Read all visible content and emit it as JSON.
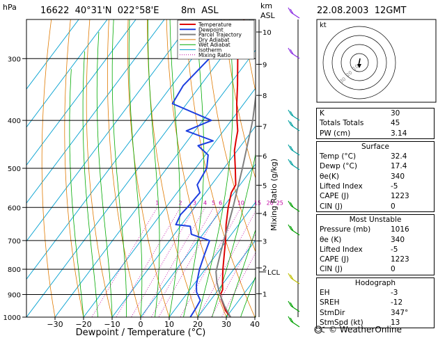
{
  "header": {
    "hpa_label": "hPa",
    "station": "16622  40°31'N  022°58'E",
    "elevation": "8m  ASL",
    "km_label": "km",
    "asl_label": "ASL",
    "datetime": "22.08.2003  12GMT"
  },
  "chart_data": {
    "type": "skewt",
    "xlabel": "Dewpoint / Temperature (°C)",
    "ylabel_right": "Mixing Ratio (g/kg)",
    "x_ticks": [
      -30,
      -20,
      -10,
      0,
      10,
      20,
      30,
      40
    ],
    "x_tick_labels": [
      "−30",
      "−20",
      "−10",
      "0",
      "10",
      "20",
      "30",
      "40"
    ],
    "pressure_ticks": [
      300,
      400,
      500,
      600,
      700,
      800,
      900,
      1000
    ],
    "pressure_tick_labels": [
      "300",
      "400",
      "500",
      "600",
      "700",
      "800",
      "900",
      "1000"
    ],
    "height_km_ticks": [
      {
        "km": 1,
        "p": 897
      },
      {
        "km": 2,
        "p": 795
      },
      {
        "km": 3,
        "p": 701
      },
      {
        "km": 4,
        "p": 617
      },
      {
        "km": 5,
        "p": 541
      },
      {
        "km": 6,
        "p": 472
      },
      {
        "km": 7,
        "p": 411
      },
      {
        "km": 8,
        "p": 356
      },
      {
        "km": 9,
        "p": 308
      },
      {
        "km": 10,
        "p": 265
      }
    ],
    "lcl": {
      "label": "LCL",
      "p": 810
    },
    "mixing_ratio_labels": [
      "1",
      "2",
      "3",
      "4",
      "5",
      "6",
      "10",
      "15",
      "20",
      "25"
    ],
    "mixing_ratio_values": [
      1,
      2,
      3,
      4,
      5,
      6,
      10,
      15,
      20,
      25
    ],
    "legend": [
      {
        "name": "Temperature",
        "color": "#dd0000"
      },
      {
        "name": "Dewpoint",
        "color": "#1c3ee0"
      },
      {
        "name": "Parcel Trajectory",
        "color": "#808080"
      },
      {
        "name": "Dry Adiabat",
        "color": "#e07a00"
      },
      {
        "name": "Wet Adiabat",
        "color": "#00aa00"
      },
      {
        "name": "Isotherm",
        "color": "#00a0d0"
      },
      {
        "name": "Mixing Ratio",
        "color": "#c000a0"
      }
    ],
    "series": [
      {
        "name": "Temperature",
        "points": [
          {
            "p": 1000,
            "t": 31.5
          },
          {
            "p": 970,
            "t": 28.0
          },
          {
            "p": 925,
            "t": 24.0
          },
          {
            "p": 900,
            "t": 22.0
          },
          {
            "p": 880,
            "t": 21.5
          },
          {
            "p": 850,
            "t": 19.5
          },
          {
            "p": 800,
            "t": 16.2
          },
          {
            "p": 750,
            "t": 13.0
          },
          {
            "p": 700,
            "t": 9.6
          },
          {
            "p": 650,
            "t": 5.6
          },
          {
            "p": 600,
            "t": 1.8
          },
          {
            "p": 560,
            "t": -1.0
          },
          {
            "p": 540,
            "t": -1.5
          },
          {
            "p": 500,
            "t": -6.0
          },
          {
            "p": 460,
            "t": -11.0
          },
          {
            "p": 440,
            "t": -13.0
          },
          {
            "p": 420,
            "t": -15.0
          },
          {
            "p": 400,
            "t": -18.0
          },
          {
            "p": 370,
            "t": -22.5
          },
          {
            "p": 340,
            "t": -27.0
          },
          {
            "p": 300,
            "t": -34.0
          },
          {
            "p": 270,
            "t": -39.5
          },
          {
            "p": 260,
            "t": -42.0
          },
          {
            "p": 250,
            "t": -42.0
          }
        ]
      },
      {
        "name": "Dewpoint",
        "points": [
          {
            "p": 1000,
            "t": 17.4
          },
          {
            "p": 960,
            "t": 17.0
          },
          {
            "p": 925,
            "t": 16.5
          },
          {
            "p": 890,
            "t": 13.0
          },
          {
            "p": 860,
            "t": 11.0
          },
          {
            "p": 800,
            "t": 8.0
          },
          {
            "p": 750,
            "t": 6.0
          },
          {
            "p": 700,
            "t": 4.0
          },
          {
            "p": 680,
            "t": -4.0
          },
          {
            "p": 655,
            "t": -6.5
          },
          {
            "p": 650,
            "t": -12.0
          },
          {
            "p": 620,
            "t": -13.0
          },
          {
            "p": 600,
            "t": -12.5
          },
          {
            "p": 560,
            "t": -12.0
          },
          {
            "p": 540,
            "t": -15.0
          },
          {
            "p": 500,
            "t": -16.0
          },
          {
            "p": 470,
            "t": -19.0
          },
          {
            "p": 450,
            "t": -25.0
          },
          {
            "p": 440,
            "t": -21.0
          },
          {
            "p": 420,
            "t": -33.0
          },
          {
            "p": 400,
            "t": -27.0
          },
          {
            "p": 370,
            "t": -45.0
          },
          {
            "p": 340,
            "t": -46.0
          },
          {
            "p": 300,
            "t": -44.0
          },
          {
            "p": 290,
            "t": -44.0
          }
        ]
      },
      {
        "name": "Parcel Trajectory",
        "points": [
          {
            "p": 1000,
            "t": 31.5
          },
          {
            "p": 950,
            "t": 26.5
          },
          {
            "p": 900,
            "t": 21.8
          },
          {
            "p": 850,
            "t": 17.5
          },
          {
            "p": 810,
            "t": 14.5
          },
          {
            "p": 750,
            "t": 11.5
          },
          {
            "p": 700,
            "t": 9.0
          },
          {
            "p": 600,
            "t": 3.5
          },
          {
            "p": 500,
            "t": -3.5
          },
          {
            "p": 400,
            "t": -12.5
          },
          {
            "p": 300,
            "t": -26.0
          },
          {
            "p": 250,
            "t": -34.0
          }
        ]
      }
    ],
    "dry_adiabats_theta_c": [
      -30,
      -20,
      -10,
      0,
      10,
      20,
      30,
      40,
      50,
      60,
      70,
      80,
      90,
      100,
      110,
      120,
      130,
      140,
      150
    ],
    "wet_adiabats_t_c": [
      -20,
      -15,
      -10,
      -5,
      0,
      5,
      10,
      15,
      20,
      25,
      30,
      35,
      40
    ],
    "isotherms_t_c": [
      -100,
      -90,
      -80,
      -70,
      -60,
      -50,
      -40,
      -30,
      -20,
      -10,
      0,
      10,
      20,
      30,
      40
    ],
    "xlim": [
      -38,
      40
    ],
    "plim": [
      1000,
      250
    ]
  },
  "hodograph": {
    "title": "kt",
    "rings": [
      10,
      20,
      30,
      40
    ],
    "ring_labels": [
      "10",
      "20",
      "30"
    ]
  },
  "stats": {
    "block1": [
      {
        "label": "K",
        "value": "30"
      },
      {
        "label": "Totals Totals",
        "value": "45"
      },
      {
        "label": "PW (cm)",
        "value": "3.14"
      }
    ],
    "surface": {
      "title": "Surface",
      "rows": [
        {
          "label": "Temp (°C)",
          "value": "32.4"
        },
        {
          "label": "Dewp (°C)",
          "value": "17.4"
        },
        {
          "label": "θe(K)",
          "value": "340"
        },
        {
          "label": "Lifted Index",
          "value": "-5"
        },
        {
          "label": "CAPE (J)",
          "value": "1223"
        },
        {
          "label": "CIN (J)",
          "value": "0"
        }
      ]
    },
    "most_unstable": {
      "title": "Most Unstable",
      "rows": [
        {
          "label": "Pressure (mb)",
          "value": "1016"
        },
        {
          "label": "θe (K)",
          "value": "340"
        },
        {
          "label": "Lifted Index",
          "value": "-5"
        },
        {
          "label": "CAPE (J)",
          "value": "1223"
        },
        {
          "label": "CIN (J)",
          "value": "0"
        }
      ]
    },
    "hodograph": {
      "title": "Hodograph",
      "rows": [
        {
          "label": "EH",
          "value": "-3"
        },
        {
          "label": "SREH",
          "value": "-12"
        },
        {
          "label": "StmDir",
          "value": "347°"
        },
        {
          "label": "StmSpd (kt)",
          "value": "13"
        }
      ]
    }
  },
  "brand": {
    "text": "© WeatherOnline"
  }
}
